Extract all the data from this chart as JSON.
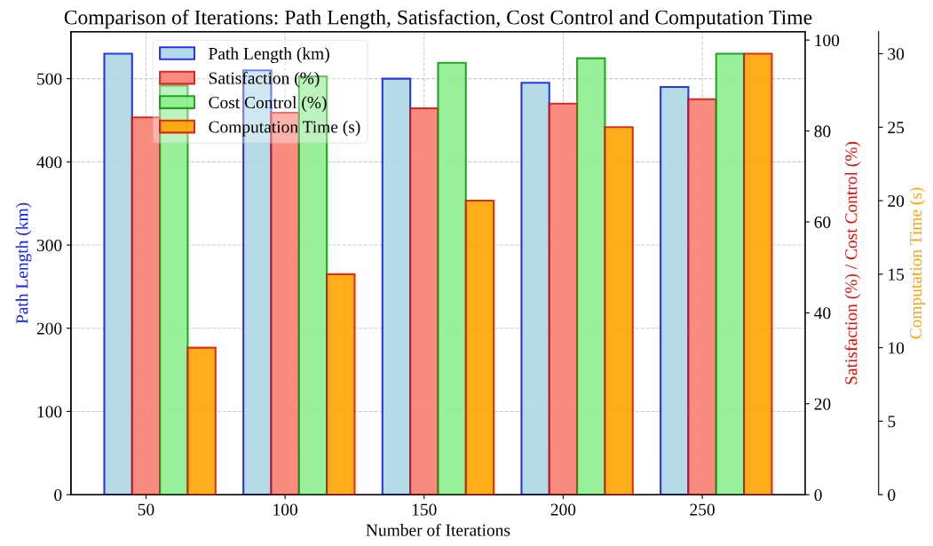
{
  "chart_data": {
    "type": "bar",
    "title": "Comparison of Iterations: Path Length, Satisfaction, Cost Control and Computation Time",
    "xlabel": "Number of Iterations",
    "ylabel": "Path Length (km)",
    "y2label": "Satisfaction (%) / Cost Control (%)",
    "y3label": "Computation Time (s)",
    "categories": [
      "50",
      "100",
      "150",
      "200",
      "250"
    ],
    "series": [
      {
        "name": "Path Length (km)",
        "color": "#add8e6",
        "values": [
          530,
          510,
          500,
          495,
          490
        ],
        "axis": "y"
      },
      {
        "name": "Satisfaction (%)",
        "color": "#fa8072",
        "values": [
          83,
          84,
          85,
          86,
          87
        ],
        "axis": "y2"
      },
      {
        "name": "Cost Control (%)",
        "color": "#90ee90",
        "values": [
          90,
          92,
          95,
          96,
          97
        ],
        "axis": "y2"
      },
      {
        "name": "Computation Time (s)",
        "color": "#ffa500",
        "values": [
          10,
          15,
          20,
          25,
          30
        ],
        "axis": "y3"
      }
    ],
    "ylim": [
      0,
      556.5
    ],
    "yticks": [
      0,
      100,
      200,
      300,
      400,
      500
    ],
    "y2lim": [
      0,
      101.85
    ],
    "y2ticks": [
      0,
      20,
      40,
      60,
      80,
      100
    ],
    "y3lim": [
      0,
      31.5
    ],
    "y3ticks": [
      0,
      5,
      10,
      15,
      20,
      25,
      30
    ],
    "grid": true,
    "legend": "top left"
  }
}
